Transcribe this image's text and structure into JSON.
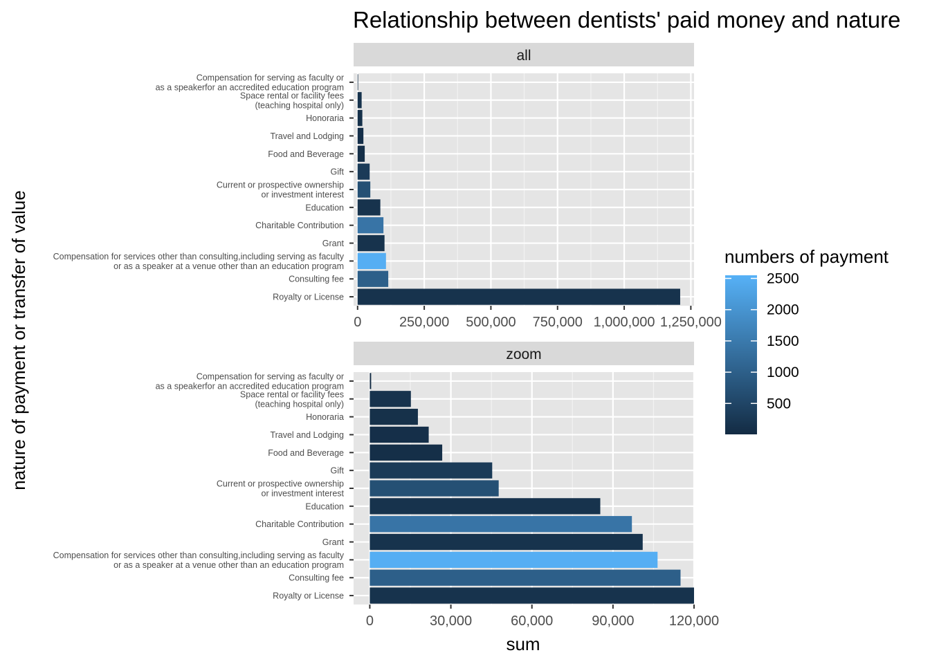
{
  "chart_data": {
    "type": "bar",
    "orientation": "horizontal",
    "title": "Relationship between dentists' paid money and nature",
    "xlabel": "sum",
    "ylabel": "nature of payment or transfer of value",
    "categories": [
      [
        "Compensation for serving as faculty or",
        "as a speakerfor an accredited education program"
      ],
      [
        "Space rental or facility fees",
        "(teaching hospital only)"
      ],
      [
        "Honoraria"
      ],
      [
        "Travel and Lodging"
      ],
      [
        "Food and Beverage"
      ],
      [
        "Gift"
      ],
      [
        "Current or prospective ownership",
        "or investment interest"
      ],
      [
        "Education"
      ],
      [
        "Charitable Contribution"
      ],
      [
        "Grant"
      ],
      [
        "Compensation for services other than consulting,including serving as faculty",
        "or as a speaker at a venue other than an education program"
      ],
      [
        "Consulting fee"
      ],
      [
        "Royalty or License"
      ]
    ],
    "values": [
      500,
      15200,
      17800,
      21800,
      26800,
      45300,
      47700,
      85300,
      97000,
      101000,
      106500,
      115000,
      1210000
    ],
    "counts": [
      5,
      150,
      110,
      90,
      80,
      300,
      700,
      150,
      1400,
      150,
      2500,
      1000,
      150
    ],
    "panels": [
      {
        "label": "all",
        "xlim": [
          -15000,
          1262000
        ],
        "xticks": [
          0,
          250000,
          500000,
          750000,
          1000000,
          1250000
        ],
        "xtick_labels": [
          "0",
          "250,000",
          "500,000",
          "750,000",
          "1,000,000",
          "1,250,000"
        ]
      },
      {
        "label": "zoom",
        "xlim": [
          -6000,
          120000
        ],
        "xticks": [
          0,
          30000,
          60000,
          90000,
          120000
        ],
        "xtick_labels": [
          "0",
          "30,000",
          "60,000",
          "90,000",
          "120,000"
        ]
      }
    ],
    "legend": {
      "title": "numbers of payment",
      "placement": "right",
      "range": [
        5,
        2550
      ],
      "ticks": [
        500,
        1000,
        1500,
        2000,
        2500
      ],
      "tick_labels": [
        "500",
        "1000",
        "1500",
        "2000",
        "2500"
      ],
      "color_low": "#132B43",
      "color_high": "#56B1F7"
    },
    "grid": true,
    "panel_background": "#e5e5e5",
    "strip_background": "#d9d9d9"
  }
}
